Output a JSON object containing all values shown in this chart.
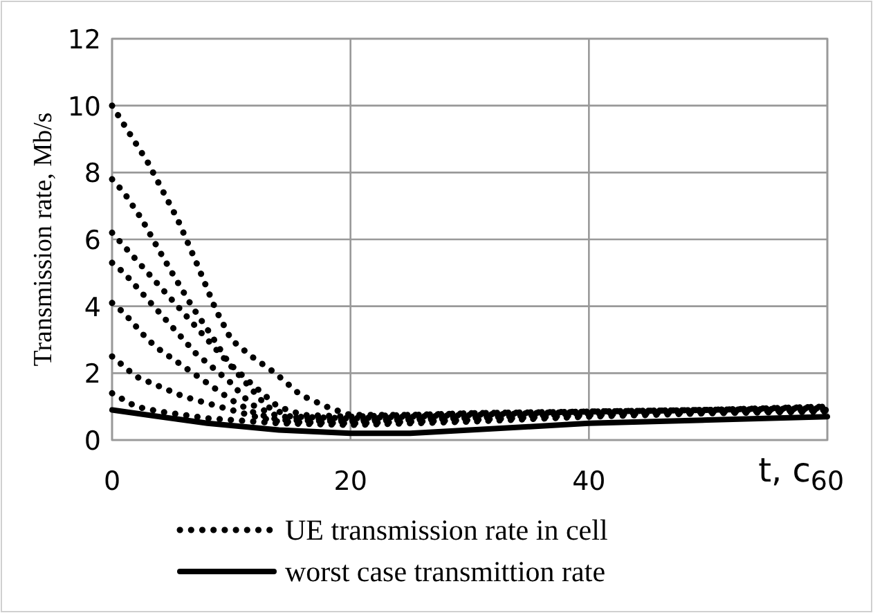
{
  "chart_data": {
    "type": "line",
    "xlabel": "t, c",
    "ylabel": "Transmission rate, Mb/s",
    "xlim": [
      0,
      60
    ],
    "ylim": [
      0,
      12
    ],
    "xticks": [
      0,
      20,
      40,
      60
    ],
    "yticks": [
      0,
      2,
      4,
      6,
      8,
      10,
      12
    ],
    "grid": true,
    "legend": "bottom",
    "series": [
      {
        "name": "UE transmission rate in cell",
        "color": "#000000",
        "line_style": "dotted",
        "x": [
          0,
          3,
          5.5,
          7.2,
          8.7,
          10,
          11.7,
          13.7,
          15.8,
          18.3,
          20,
          25,
          30,
          40,
          50,
          60
        ],
        "values": [
          10,
          8.3,
          6.6,
          5.2,
          3.9,
          3.0,
          2.5,
          2.0,
          1.35,
          0.95,
          0.75,
          0.75,
          0.8,
          0.85,
          0.9,
          1.0
        ]
      },
      {
        "color": "#000000",
        "line_style": "dotted",
        "x": [
          0,
          1,
          2.5,
          3.9,
          5.2,
          6.7,
          8.2,
          9.8,
          11.8,
          13.9,
          16,
          20,
          25,
          30,
          40,
          50,
          60
        ],
        "values": [
          7.8,
          7.4,
          6.6,
          5.7,
          4.9,
          4.0,
          3.2,
          2.3,
          1.65,
          1.0,
          0.75,
          0.7,
          0.75,
          0.8,
          0.85,
          0.9,
          1.0
        ]
      },
      {
        "color": "#000000",
        "line_style": "dotted",
        "x": [
          0,
          1,
          2,
          3,
          4,
          5,
          6,
          7,
          8,
          9,
          10,
          11,
          12,
          13,
          15,
          20,
          30,
          40,
          50,
          60
        ],
        "values": [
          6.2,
          5.8,
          5.4,
          5.0,
          4.6,
          4.2,
          3.8,
          3.4,
          3.0,
          2.6,
          2.2,
          1.8,
          1.4,
          1.0,
          0.7,
          0.65,
          0.75,
          0.85,
          0.9,
          0.95
        ]
      },
      {
        "color": "#000000",
        "line_style": "dotted",
        "x": [
          0,
          1,
          2,
          3,
          4,
          5,
          6,
          7,
          8,
          9,
          10,
          11,
          12,
          14,
          20,
          30,
          40,
          50,
          60
        ],
        "values": [
          5.3,
          5.0,
          4.6,
          4.2,
          3.8,
          3.4,
          3.0,
          2.6,
          2.3,
          2.0,
          1.7,
          1.3,
          1.0,
          0.7,
          0.6,
          0.7,
          0.8,
          0.9,
          0.95
        ]
      },
      {
        "color": "#000000",
        "line_style": "dotted",
        "x": [
          0,
          1,
          2,
          3,
          4,
          6,
          8,
          10,
          12,
          14,
          20,
          30,
          40,
          50,
          60
        ],
        "values": [
          4.1,
          3.8,
          3.4,
          3.0,
          2.7,
          2.2,
          1.7,
          1.2,
          0.8,
          0.6,
          0.55,
          0.65,
          0.8,
          0.85,
          0.9
        ]
      },
      {
        "color": "#000000",
        "line_style": "dotted",
        "x": [
          0,
          1,
          2,
          4,
          6,
          8,
          10,
          12,
          14,
          20,
          30,
          40,
          50,
          60
        ],
        "values": [
          2.5,
          2.2,
          1.9,
          1.6,
          1.3,
          1.1,
          0.9,
          0.7,
          0.55,
          0.5,
          0.6,
          0.75,
          0.85,
          0.9
        ]
      },
      {
        "color": "#000000",
        "line_style": "dotted",
        "x": [
          0,
          1,
          2,
          4,
          6,
          8,
          10,
          12,
          14,
          20,
          30,
          40,
          50,
          60
        ],
        "values": [
          1.4,
          1.2,
          1.0,
          0.85,
          0.75,
          0.65,
          0.6,
          0.55,
          0.5,
          0.45,
          0.55,
          0.7,
          0.8,
          0.85
        ]
      },
      {
        "name": "worst case transmittion rate",
        "color": "#000000",
        "line_style": "solid",
        "x": [
          0,
          4,
          8,
          14,
          20,
          25,
          30,
          35,
          40,
          50,
          60
        ],
        "values": [
          0.9,
          0.7,
          0.5,
          0.3,
          0.2,
          0.2,
          0.3,
          0.4,
          0.5,
          0.6,
          0.7
        ]
      }
    ]
  }
}
